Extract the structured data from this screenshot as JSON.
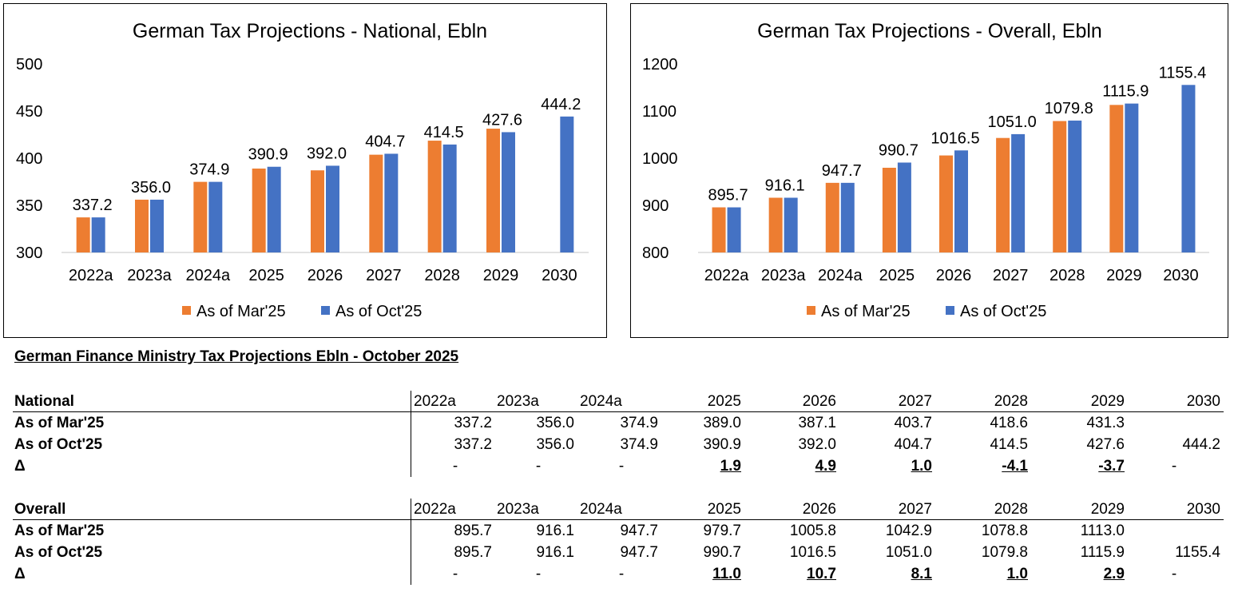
{
  "colors": {
    "mar": "#ED7D31",
    "oct": "#4472C4",
    "axis": "#d9d9d9"
  },
  "chart_data": [
    {
      "type": "bar",
      "title": "German Tax Projections - National, Ebln",
      "categories": [
        "2022a",
        "2023a",
        "2024a",
        "2025",
        "2026",
        "2027",
        "2028",
        "2029",
        "2030"
      ],
      "series": [
        {
          "name": "As of Mar'25",
          "values": [
            337.2,
            356.0,
            374.9,
            389.0,
            387.1,
            403.7,
            418.6,
            431.3,
            null
          ]
        },
        {
          "name": "As of Oct'25",
          "values": [
            337.2,
            356.0,
            374.9,
            390.9,
            392.0,
            404.7,
            414.5,
            427.6,
            444.2
          ]
        }
      ],
      "data_labels": [
        "337.2",
        "356.0",
        "374.9",
        "390.9",
        "392.0",
        "404.7",
        "414.5",
        "427.6",
        "444.2"
      ],
      "ylim": [
        300,
        500
      ],
      "yticks": [
        "300",
        "350",
        "400",
        "450",
        "500"
      ],
      "legend": "bottom",
      "grid": false
    },
    {
      "type": "bar",
      "title": "German Tax Projections - Overall, Ebln",
      "categories": [
        "2022a",
        "2023a",
        "2024a",
        "2025",
        "2026",
        "2027",
        "2028",
        "2029",
        "2030"
      ],
      "series": [
        {
          "name": "As of Mar'25",
          "values": [
            895.7,
            916.1,
            947.7,
            979.7,
            1005.8,
            1042.9,
            1078.8,
            1113.0,
            null
          ]
        },
        {
          "name": "As of Oct'25",
          "values": [
            895.7,
            916.1,
            947.7,
            990.7,
            1016.5,
            1051.0,
            1079.8,
            1115.9,
            1155.4
          ]
        }
      ],
      "data_labels": [
        "895.7",
        "916.1",
        "947.7",
        "990.7",
        "1016.5",
        "1051.0",
        "1079.8",
        "1115.9",
        "1155.4"
      ],
      "ylim": [
        800,
        1200
      ],
      "yticks": [
        "800",
        "900",
        "1000",
        "1100",
        "1200"
      ],
      "legend": "bottom",
      "grid": false
    }
  ],
  "table": {
    "title": "German Finance Ministry Tax Projections Ebln - October 2025",
    "columns": [
      "2022a",
      "2023a",
      "2024a",
      "2025",
      "2026",
      "2027",
      "2028",
      "2029",
      "2030"
    ],
    "sections": [
      {
        "name": "National",
        "rows": [
          {
            "label": "As of Mar'25",
            "values": [
              "337.2",
              "356.0",
              "374.9",
              "389.0",
              "387.1",
              "403.7",
              "418.6",
              "431.3",
              ""
            ]
          },
          {
            "label": "As of Oct'25",
            "values": [
              "337.2",
              "356.0",
              "374.9",
              "390.9",
              "392.0",
              "404.7",
              "414.5",
              "427.6",
              "444.2"
            ]
          },
          {
            "label": "Δ",
            "values": [
              "-",
              "-",
              "-",
              "1.9",
              "4.9",
              "1.0",
              "-4.1",
              "-3.7",
              "-"
            ]
          }
        ]
      },
      {
        "name": "Overall",
        "rows": [
          {
            "label": "As of Mar'25",
            "values": [
              "895.7",
              "916.1",
              "947.7",
              "979.7",
              "1005.8",
              "1042.9",
              "1078.8",
              "1113.0",
              ""
            ]
          },
          {
            "label": "As of Oct'25",
            "values": [
              "895.7",
              "916.1",
              "947.7",
              "990.7",
              "1016.5",
              "1051.0",
              "1079.8",
              "1115.9",
              "1155.4"
            ]
          },
          {
            "label": "Δ",
            "values": [
              "-",
              "-",
              "-",
              "11.0",
              "10.7",
              "8.1",
              "1.0",
              "2.9",
              "-"
            ]
          }
        ]
      }
    ]
  }
}
